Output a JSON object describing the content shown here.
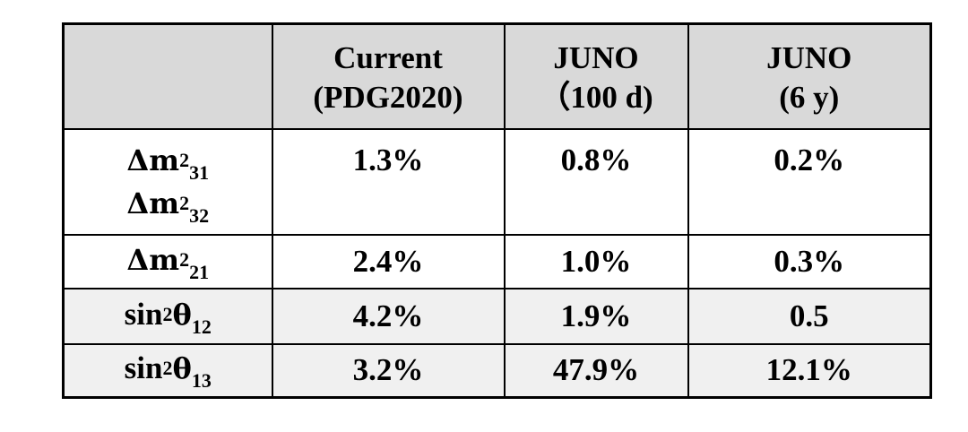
{
  "header": {
    "col0": "",
    "col1_line1": "Current",
    "col1_line2": "(PDG2020)",
    "col2_line1": "JUNO",
    "col2_line2": "（100 d)",
    "col3_line1": "JUNO",
    "col3_line2": "(6 y)"
  },
  "rows": [
    {
      "param_a": {
        "base": "Δm",
        "sup": "2",
        "sub": "31"
      },
      "param_b": {
        "base": "Δm",
        "sup": "2",
        "sub": "32"
      },
      "current": "1.3%",
      "juno_100d": "0.8%",
      "juno_6y": "0.2%"
    },
    {
      "param_a": {
        "base": "Δm",
        "sup": "2",
        "sub": "21"
      },
      "current": "2.4%",
      "juno_100d": "1.0%",
      "juno_6y": "0.3%"
    },
    {
      "param_a": {
        "base": "sin",
        "sup": "2",
        "greek": "θ",
        "sub": "12"
      },
      "current": "4.2%",
      "juno_100d": "1.9%",
      "juno_6y": "0.5"
    },
    {
      "param_a": {
        "base": "sin",
        "sup": "2",
        "greek": "θ",
        "sub": "13"
      },
      "current": "3.2%",
      "juno_100d": "47.9%",
      "juno_6y": "12.1%"
    }
  ],
  "colors": {
    "header_bg": "#d9d9d9",
    "shaded_row_bg": "#f0f0f0",
    "border": "#000000"
  }
}
